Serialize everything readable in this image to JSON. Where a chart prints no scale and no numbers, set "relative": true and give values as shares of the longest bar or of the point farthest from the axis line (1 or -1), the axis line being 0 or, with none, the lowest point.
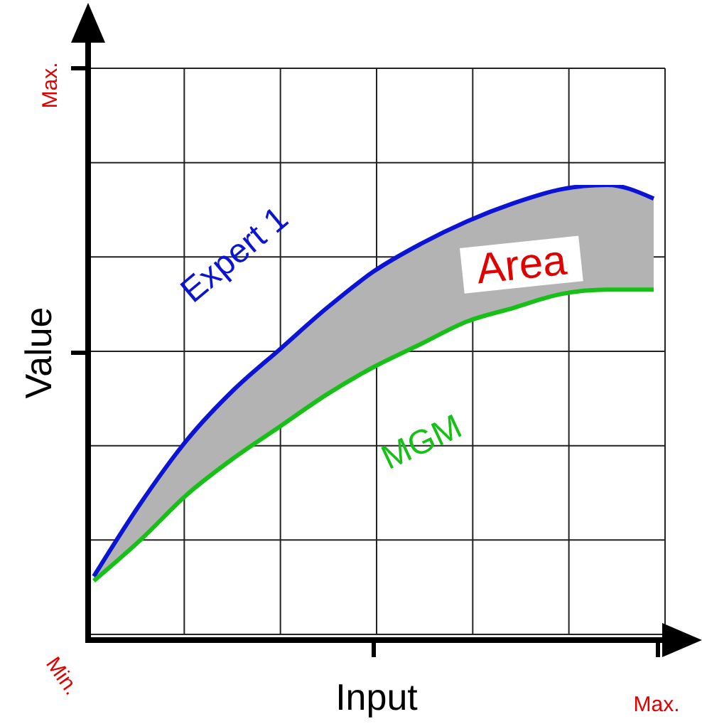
{
  "chart_data": {
    "type": "line",
    "relative": true,
    "xlabel": "Input",
    "ylabel": "Value",
    "categories": [
      null,
      null,
      null,
      null,
      null,
      null,
      null,
      null,
      null,
      null,
      null,
      null,
      null
    ],
    "series": [
      {
        "name": "Expert 1",
        "color": "#0a14d2",
        "values": [
          0.14,
          0.3,
          0.44,
          0.55,
          0.64,
          0.73,
          0.81,
          0.87,
          0.92,
          0.96,
          0.99,
          1.0,
          0.97
        ],
        "lower": [
          0.13,
          0.22,
          0.32,
          0.4,
          0.47,
          0.54,
          0.6,
          0.65,
          0.7,
          0.73,
          0.76,
          0.77,
          0.77
        ],
        "upper": [
          0.14,
          0.3,
          0.44,
          0.55,
          0.64,
          0.73,
          0.81,
          0.87,
          0.92,
          0.96,
          0.99,
          1.0,
          0.97
        ]
      },
      {
        "name": "MGM",
        "color": "#16c016",
        "values": [
          0.13,
          0.22,
          0.32,
          0.4,
          0.47,
          0.54,
          0.6,
          0.65,
          0.7,
          0.73,
          0.76,
          0.77,
          0.77
        ]
      }
    ],
    "annotations": [
      "Max.",
      "Min.",
      "Max.",
      "Area"
    ],
    "grid": true,
    "legend": false,
    "marker": "none",
    "line_style": "solid"
  }
}
